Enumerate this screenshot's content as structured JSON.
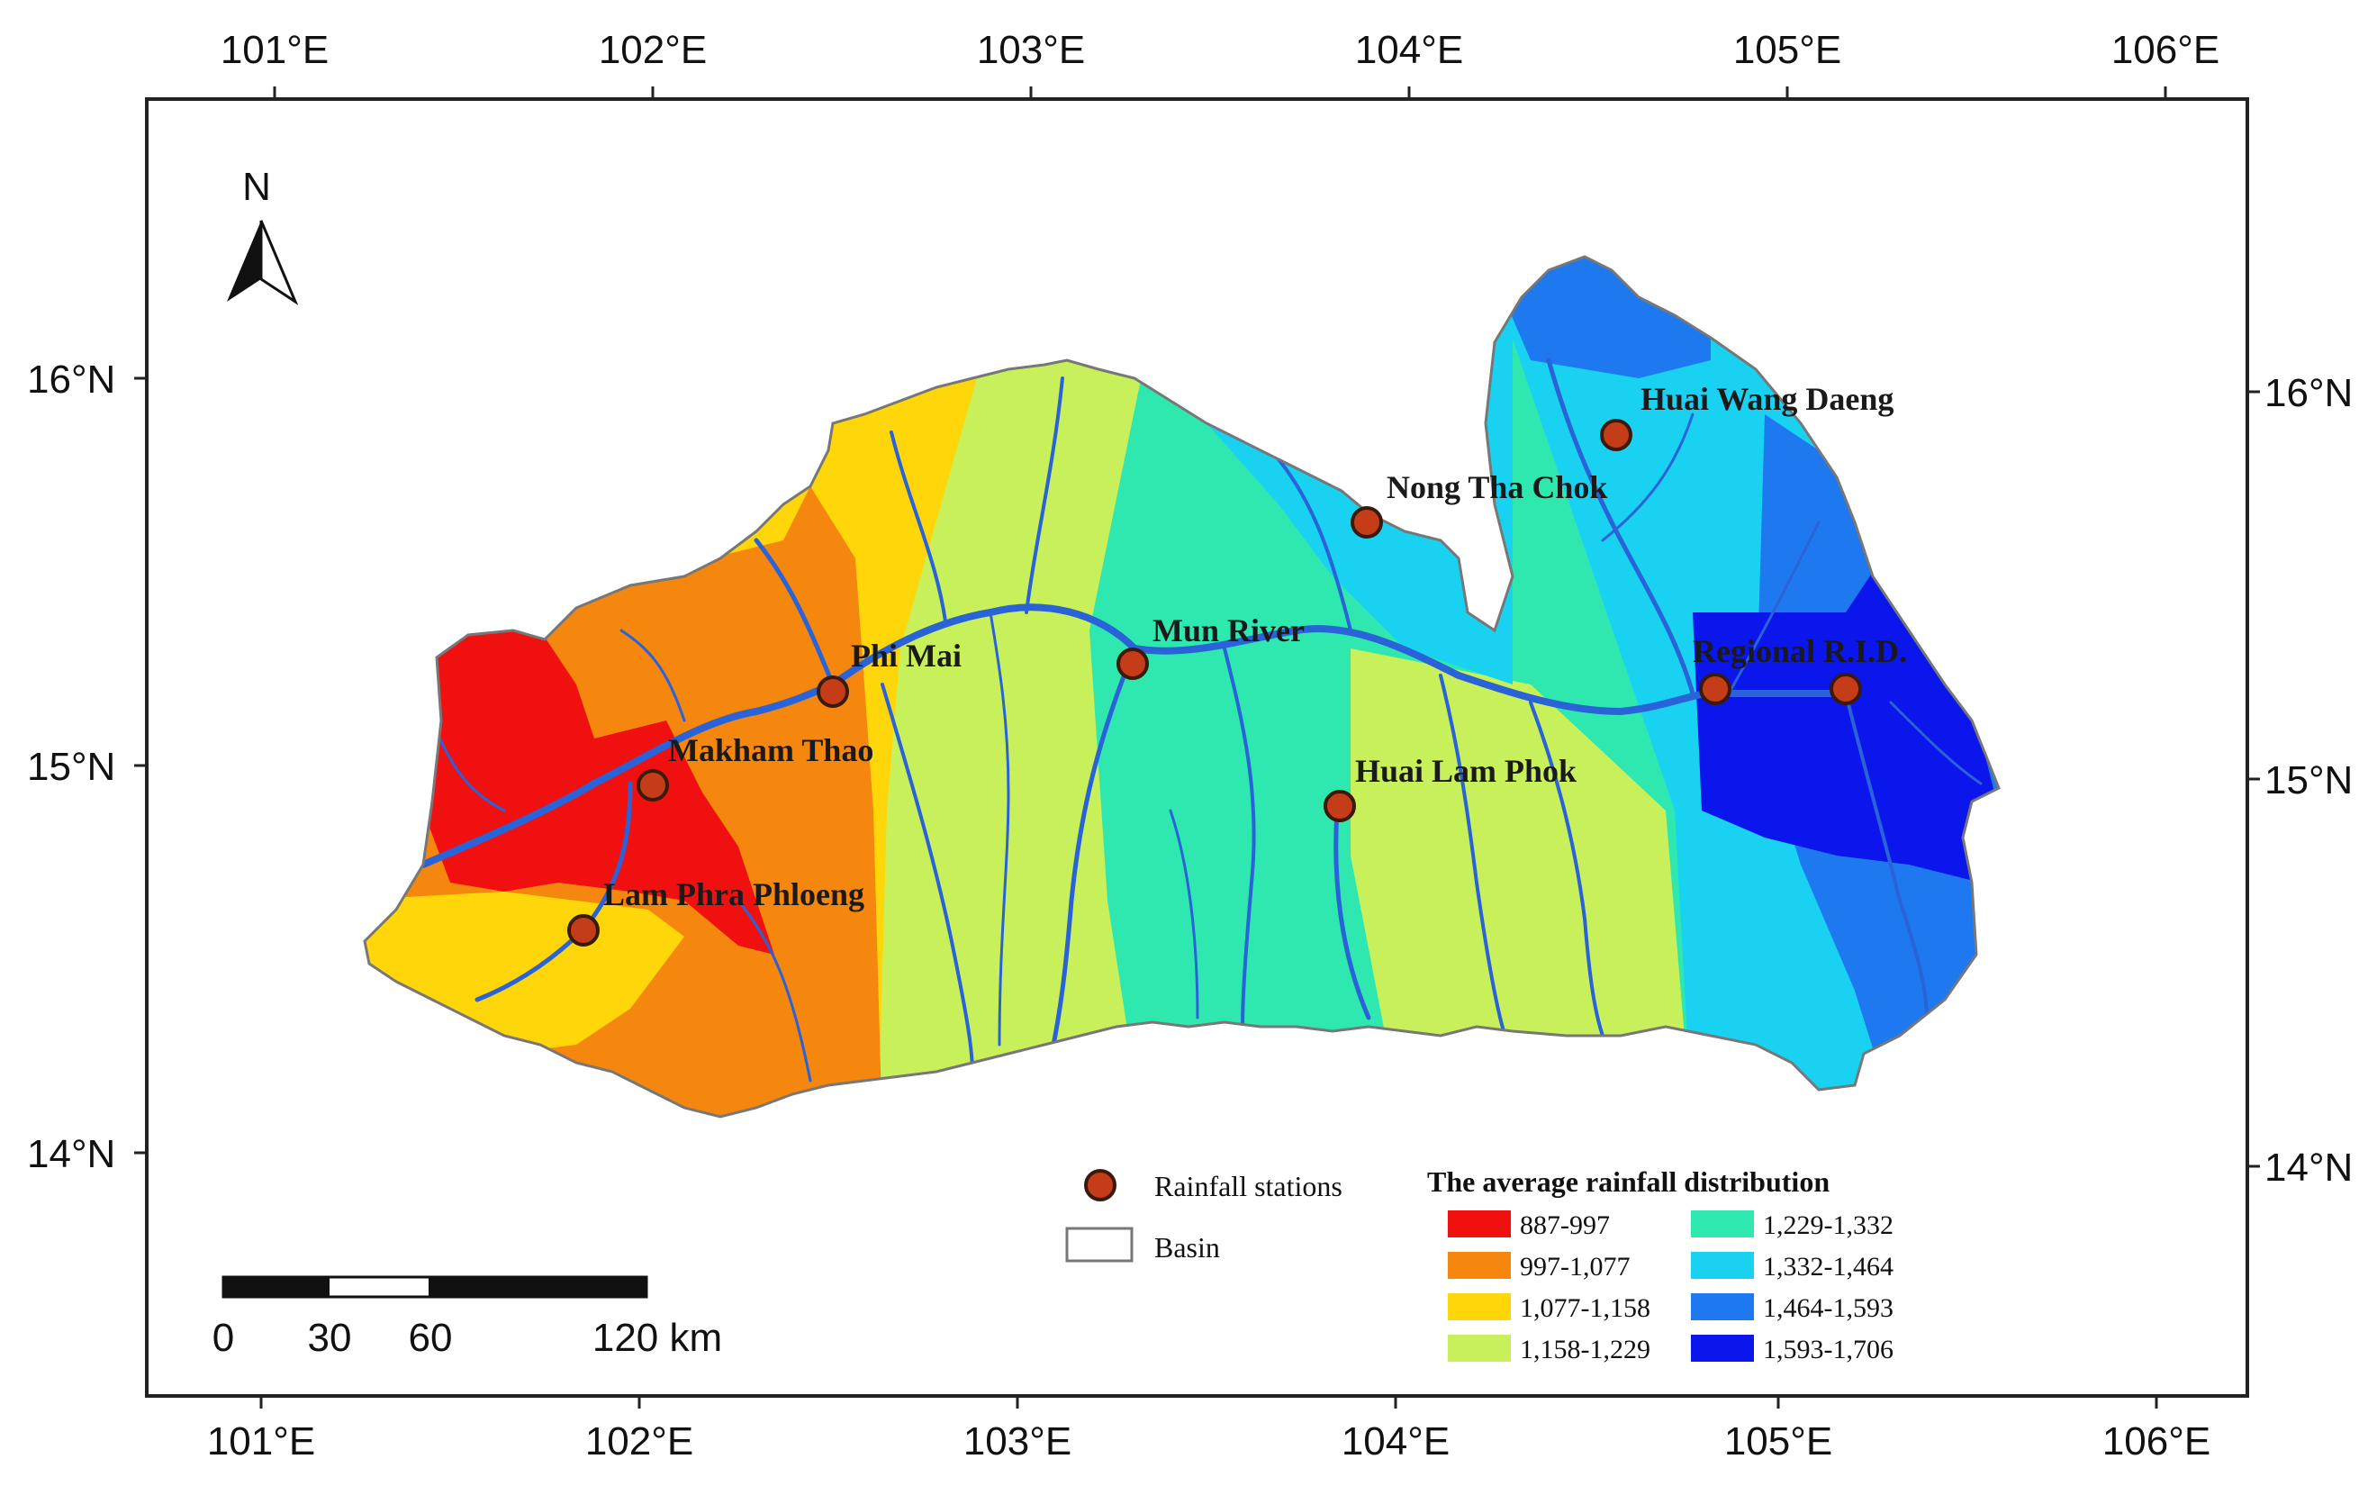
{
  "map": {
    "north_label": "N",
    "top_lon_labels": [
      "101°E",
      "102°E",
      "103°E",
      "104°E",
      "105°E",
      "106°E"
    ],
    "bottom_lon_labels": [
      "101°E",
      "102°E",
      "103°E",
      "104°E",
      "105°E",
      "106°E"
    ],
    "left_lat_labels": [
      "16°N",
      "15°N",
      "14°N"
    ],
    "right_lat_labels": [
      "16°N",
      "15°N",
      "14°N"
    ],
    "stations": [
      {
        "name": "Huai Wang Daeng"
      },
      {
        "name": "Nong Tha Chok"
      },
      {
        "name": "Mun River"
      },
      {
        "name": "Phi Mai"
      },
      {
        "name": "Regional R.I.D."
      },
      {
        "name": "Makham Thao"
      },
      {
        "name": "Huai Lam Phok"
      },
      {
        "name": "Lam Phra Phloeng"
      }
    ],
    "scale_bar": {
      "labels": [
        "0",
        "30",
        "60",
        "120 km"
      ]
    },
    "legend": {
      "stations_label": "Rainfall stations",
      "basin_label": "Basin",
      "title": "The average rainfall distribution",
      "classes": [
        {
          "range": "887-997",
          "color": "#f01010"
        },
        {
          "range": "997-1,077",
          "color": "#f5860e"
        },
        {
          "range": "1,077-1,158",
          "color": "#ffd60a"
        },
        {
          "range": "1,158-1,229",
          "color": "#c8f05a"
        },
        {
          "range": "1,229-1,332",
          "color": "#2ee8b0"
        },
        {
          "range": "1,332-1,464",
          "color": "#19d2f2"
        },
        {
          "range": "1,464-1,593",
          "color": "#1e78ef"
        },
        {
          "range": "1,593-1,706",
          "color": "#0a16ec"
        }
      ]
    },
    "colors": {
      "river": "#2a62d8",
      "station_fill": "#c43d18",
      "basin_outline": "#777777"
    }
  }
}
